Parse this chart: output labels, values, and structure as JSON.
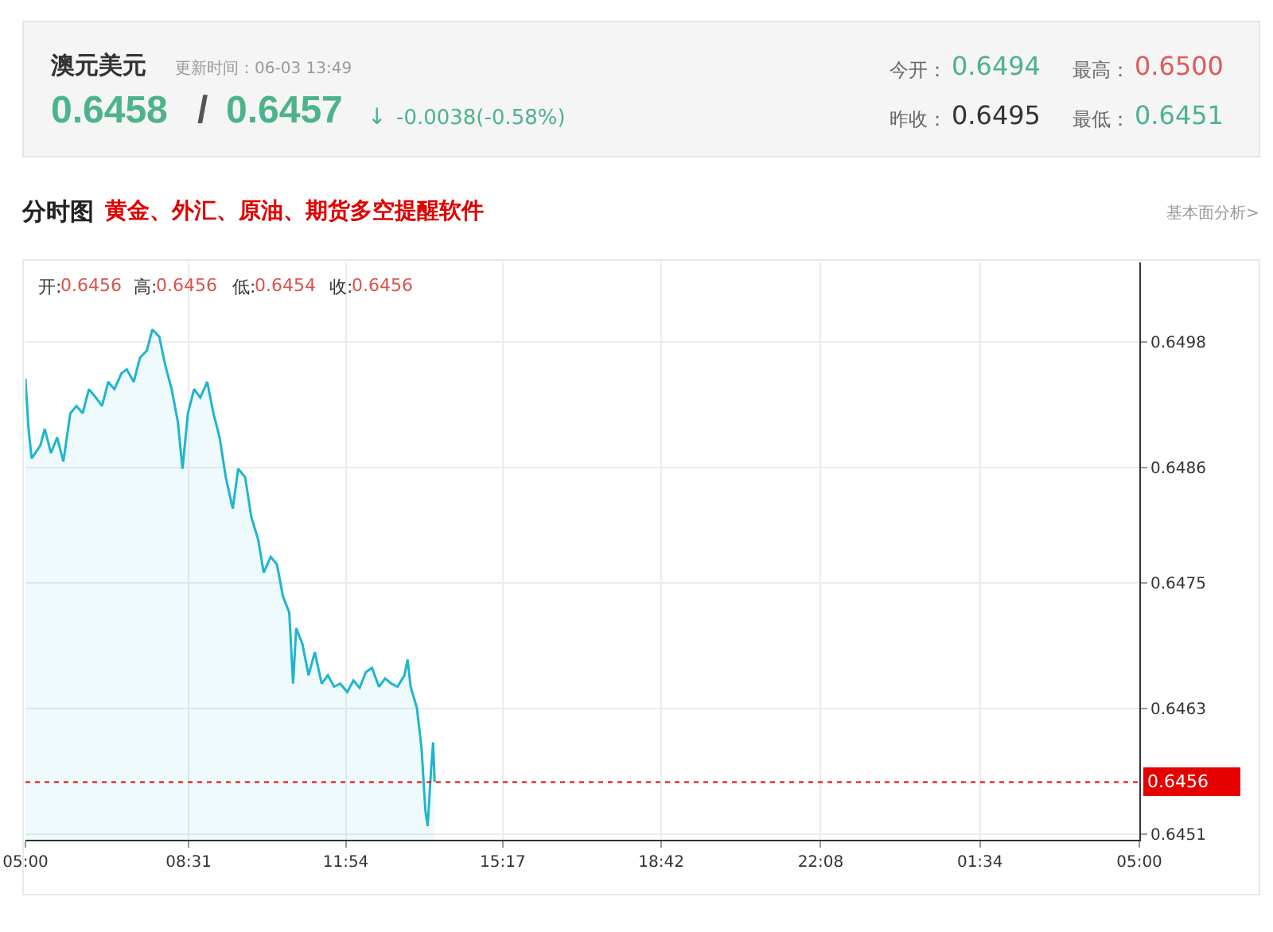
{
  "chart_data": {
    "type": "area",
    "title": "分时图",
    "subtitle": "黄金、外汇、原油、期货多空提醒软件",
    "annotations": [
      "澳元美元",
      "更新时间：06-03 13:49",
      "0.6458",
      "/",
      "0.6457",
      "↓",
      "-0.0038(-0.58%)",
      "今开：",
      "0.6494",
      "最高：",
      "0.6500",
      "昨收：",
      "0.6495",
      "最低：",
      "0.6451",
      "基本面分析>",
      "开:",
      "0.6456",
      "高:",
      "0.6456",
      "低:",
      "0.6454",
      "收:",
      "0.6456"
    ],
    "x": [
      "--06-03T05:00",
      "--06-03T05:04",
      "--06-03T05:08",
      "--06-03T05:19",
      "--06-03T05:25",
      "--06-03T05:33",
      "--06-03T05:41",
      "--06-03T05:49",
      "--06-03T05:58",
      "--06-03T06:06",
      "--06-03T06:14",
      "--06-03T06:22",
      "--06-03T06:31",
      "--06-03T06:39",
      "--06-03T06:47",
      "--06-03T06:55",
      "--06-03T07:04",
      "--06-03T07:11",
      "--06-03T07:20",
      "--06-03T07:28",
      "--06-03T07:37",
      "--06-03T07:44",
      "--06-03T07:53",
      "--06-03T08:01",
      "--06-03T08:09",
      "--06-03T08:17",
      "--06-03T08:23",
      "--06-03T08:30",
      "--06-03T08:38",
      "--06-03T08:46",
      "--06-03T08:55",
      "--06-03T09:03",
      "--06-03T09:11",
      "--06-03T09:19",
      "--06-03T09:28",
      "--06-03T09:35",
      "--06-03T09:44",
      "--06-03T09:52",
      "--06-03T10:01",
      "--06-03T10:08",
      "--06-03T10:17",
      "--06-03T10:25",
      "--06-03T10:33",
      "--06-03T10:41",
      "--06-03T10:46",
      "--06-03T10:50",
      "--06-03T10:58",
      "--06-03T11:06",
      "--06-03T11:14",
      "--06-03T11:23",
      "--06-03T11:31",
      "--06-03T11:39",
      "--06-03T11:47",
      "--06-03T11:56",
      "--06-03T12:04",
      "--06-03T12:12",
      "--06-03T12:20",
      "--06-03T12:28",
      "--06-03T12:37",
      "--06-03T12:45",
      "--06-03T12:53",
      "--06-03T13:01",
      "--06-03T13:10",
      "--06-03T13:14",
      "--06-03T13:18",
      "--06-03T13:26",
      "--06-03T13:32",
      "--06-03T13:37",
      "--06-03T13:40",
      "--06-03T13:44",
      "--06-03T13:47",
      "--06-03T13:49"
    ],
    "series": [
      {
        "color": "#1fb5cf",
        "values": [
          0.64945,
          0.64897,
          0.64869,
          0.64881,
          0.64897,
          0.64874,
          0.64889,
          0.64866,
          0.64912,
          0.64919,
          0.64912,
          0.64935,
          0.64927,
          0.64919,
          0.64942,
          0.64935,
          0.6495,
          0.64954,
          0.64942,
          0.64965,
          0.64972,
          0.64992,
          0.64985,
          0.64957,
          0.64935,
          0.64904,
          0.64859,
          0.64912,
          0.64935,
          0.64927,
          0.64942,
          0.64912,
          0.64889,
          0.64851,
          0.64821,
          0.64859,
          0.64851,
          0.64813,
          0.64791,
          0.6476,
          0.64775,
          0.64768,
          0.64737,
          0.64722,
          0.64654,
          0.64707,
          0.64692,
          0.64662,
          0.64684,
          0.64654,
          0.64662,
          0.64651,
          0.64654,
          0.64646,
          0.64657,
          0.6465,
          0.64665,
          0.64669,
          0.64651,
          0.64659,
          0.64654,
          0.64651,
          0.64662,
          0.64677,
          0.64651,
          0.64631,
          0.64593,
          0.64533,
          0.64518,
          0.64568,
          0.64598,
          0.6456
        ]
      }
    ],
    "xlim": [
      "--06-03T05:00",
      "--06-04T05:00"
    ],
    "xticks": [
      {
        "value": "--06-03T05:00",
        "label": "05:00"
      },
      {
        "value": "--06-03T08:31",
        "label": "08:31"
      },
      {
        "value": "--06-03T11:54",
        "label": "11:54"
      },
      {
        "value": "--06-03T15:17",
        "label": "15:17"
      },
      {
        "value": "--06-03T18:42",
        "label": "18:42"
      },
      {
        "value": "--06-03T22:08",
        "label": "22:08"
      },
      {
        "value": "--06-04T01:34",
        "label": "01:34"
      },
      {
        "value": "--06-04T05:00",
        "label": "05:00"
      }
    ],
    "ylim": [
      0.64505,
      0.65056
    ],
    "yticks": [
      0.6451,
      0.6463,
      0.6475,
      0.6486,
      0.6498
    ],
    "ref_lines": [
      {
        "axis": "y",
        "value": 0.6456,
        "label": "0.6456",
        "color": "#e60000",
        "line_style": "dotted"
      }
    ],
    "grid": true,
    "legend": false
  }
}
